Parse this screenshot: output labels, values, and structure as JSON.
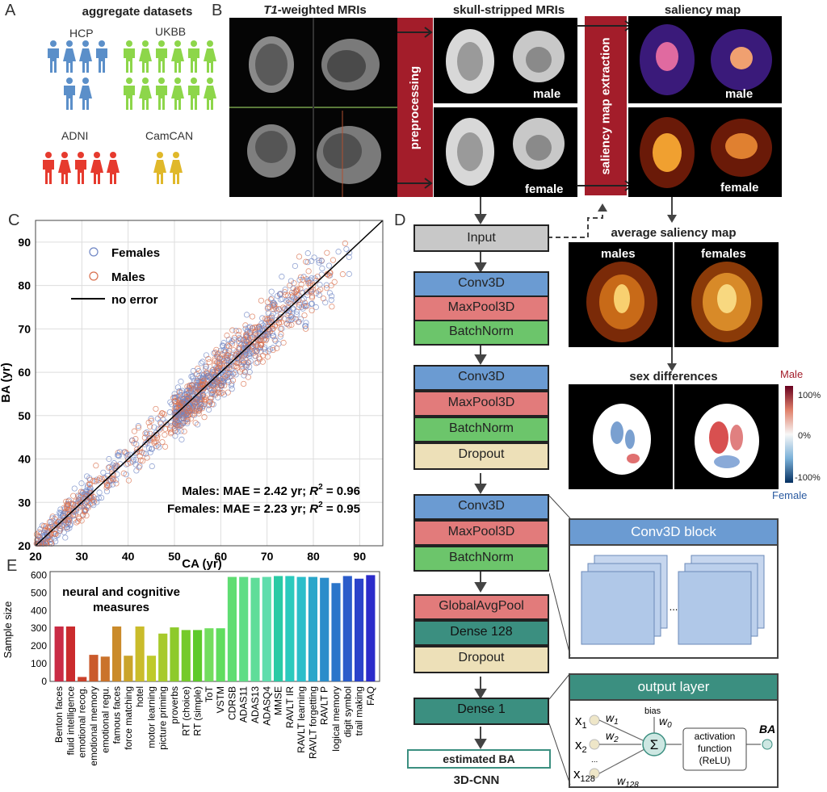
{
  "panelA": {
    "label": "A",
    "title": "aggregate datasets",
    "datasets": [
      {
        "name": "HCP",
        "color": "#5b8fc9"
      },
      {
        "name": "UKBB",
        "color": "#8dd64a"
      },
      {
        "name": "ADNI",
        "color": "#e63a2e"
      },
      {
        "name": "CamCAN",
        "color": "#e0b82a"
      }
    ]
  },
  "panelB": {
    "label": "B",
    "t1_title_italic": "T1",
    "t1_title_rest": "-weighted MRIs",
    "skull_title": "skull-stripped MRIs",
    "saliency_title": "saliency map",
    "preprocessing": "preprocessing",
    "extraction": "saliency map extraction",
    "male": "male",
    "female": "female"
  },
  "panelC": {
    "label": "C",
    "legend": {
      "females": "Females",
      "males": "Males",
      "no_error": "no error"
    },
    "annot_males_prefix": "Males: MAE = 2.42 yr; ",
    "annot_females_prefix": "Females: MAE = 2.23 yr; ",
    "r2_symbol": "R",
    "r2_exp": "2",
    "annot_males_suffix": " = 0.96",
    "annot_females_suffix": " = 0.95"
  },
  "chart_data": [
    {
      "type": "scatter",
      "title": "",
      "xlabel": "CA (yr)",
      "ylabel": "BA (yr)",
      "xlim": [
        20,
        95
      ],
      "ylim": [
        20,
        95
      ],
      "xticks": [
        20,
        30,
        40,
        50,
        60,
        70,
        80,
        90
      ],
      "yticks": [
        20,
        30,
        40,
        50,
        60,
        70,
        80,
        90
      ],
      "grid": true,
      "series": [
        {
          "name": "Females",
          "color": "#6f86c4",
          "mae": 2.23,
          "r2": 0.95
        },
        {
          "name": "Males",
          "color": "#d9704e",
          "mae": 2.42,
          "r2": 0.96
        },
        {
          "name": "no error",
          "color": "#000000",
          "line": [
            [
              20,
              20
            ],
            [
              95,
              95
            ]
          ]
        }
      ]
    },
    {
      "type": "bar",
      "title": "neural and cognitive measures",
      "ylabel": "Sample size",
      "ylim": [
        0,
        620
      ],
      "yticks": [
        0,
        100,
        200,
        300,
        400,
        500,
        600
      ],
      "categories": [
        "Benton faces",
        "fluid intelligence",
        "emotional recog.",
        "emotional memory",
        "emotional regu.",
        "famous faces",
        "force matching",
        "hotel",
        "motor learning",
        "picture priming",
        "proverbs",
        "RT (choice)",
        "RT (simple)",
        "ToT",
        "VSTM",
        "CDRSB",
        "ADAS11",
        "ADAS13",
        "ADASQ4",
        "MMSE",
        "RAVLT IR",
        "RAVLT learning",
        "RAVLT forgetting",
        "RAVLT P",
        "logical memory",
        "digit symbol",
        "trail making",
        "FAQ"
      ],
      "values": [
        310,
        310,
        25,
        150,
        140,
        310,
        145,
        310,
        145,
        270,
        305,
        290,
        290,
        300,
        300,
        590,
        590,
        585,
        590,
        595,
        595,
        590,
        590,
        585,
        555,
        595,
        580,
        600
      ]
    }
  ],
  "panelD": {
    "label": "D",
    "input": "Input",
    "conv": "Conv3D",
    "pool": "MaxPool3D",
    "bn": "BatchNorm",
    "dropout": "Dropout",
    "gap": "GlobalAvgPool",
    "dense128": "Dense 128",
    "dense1": "Dense 1",
    "estimated": "estimated BA",
    "cnn": "3D-CNN",
    "avg_title": "average saliency map",
    "males": "males",
    "females": "females",
    "sexdiff_title": "sex differences",
    "cb_male": "Male",
    "cb_female": "Female",
    "cb_ticks": [
      "100%",
      "0%",
      "-100%"
    ],
    "conv_block": "Conv3D block",
    "ellipsis": "...",
    "output_layer": "output layer",
    "x1": "x",
    "x1s": "1",
    "x2": "x",
    "x2s": "2",
    "x128": "x",
    "x128s": "128",
    "w1": "w",
    "w1s": "1",
    "w2": "w",
    "w2s": "2",
    "w128": "w",
    "w128s": "128",
    "w0": "w",
    "w0s": "0",
    "bias": "bias",
    "sigma": "Σ",
    "dots": "...",
    "act1": "activation",
    "act2": "function",
    "act3": "(ReLU)",
    "ba": "BA"
  },
  "panelE": {
    "label": "E"
  }
}
